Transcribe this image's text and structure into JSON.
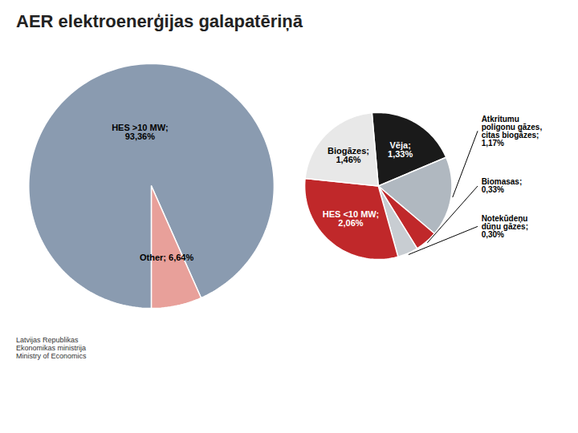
{
  "chart_data": [
    {
      "type": "pie",
      "title": "AER elektroenerģijas galapatēriņā",
      "categories": [
        "HES >10 MW;\n93,36%",
        "Other; 6,64%"
      ],
      "values": [
        93.36,
        6.64
      ],
      "colors": [
        "#8a9bb0",
        "#e8a09a"
      ],
      "annotations": [
        "Latvijas Republikas\nEkonomikas ministrija\nMinistry of Economics"
      ]
    },
    {
      "type": "pie",
      "categories": [
        "Vēja;\n1,33%",
        "Atkritumu\npoligonu gāzes,\ncitas biogāzes;\n1,17%",
        "Biomasas;\n0,33%",
        "Notekūdeņu\ndūņu gāzes;\n0,30%",
        "HES <10 MW;\n2,06%",
        "Biogāzes;\n1,46%"
      ],
      "values": [
        1.33,
        1.17,
        0.33,
        0.3,
        2.06,
        1.46
      ],
      "colors": [
        "#1a1a1a",
        "#b0b8c0",
        "#c0282a",
        "#c8cdd2",
        "#c0282a",
        "#e8e8e8"
      ]
    }
  ]
}
